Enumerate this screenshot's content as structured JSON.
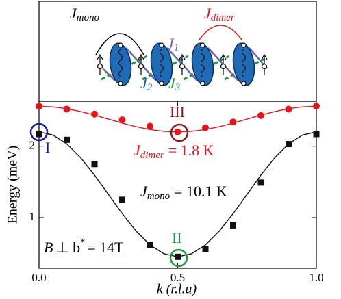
{
  "chart_data": {
    "type": "scatter",
    "x_label": "k (r.l.u)",
    "y_label": "Energy (meV)",
    "x": [
      0,
      0.1,
      0.2,
      0.3,
      0.4,
      0.5,
      0.6,
      0.7,
      0.8,
      0.9,
      1.0
    ],
    "series": [
      {
        "color": "#e8141c",
        "values": [
          2.56,
          2.52,
          2.45,
          2.37,
          2.28,
          2.2,
          2.26,
          2.34,
          2.43,
          2.52,
          2.56
        ]
      },
      {
        "color": "#111111",
        "values": [
          2.17,
          2.09,
          1.75,
          1.25,
          0.62,
          0.45,
          0.56,
          0.89,
          1.49,
          2.03,
          2.17
        ]
      }
    ],
    "fits": [
      {
        "color": "#e8141c",
        "x": [
          0,
          0.05,
          0.1,
          0.15,
          0.2,
          0.25,
          0.3,
          0.35,
          0.4,
          0.45,
          0.5,
          0.55,
          0.6,
          0.65,
          0.7,
          0.75,
          0.8,
          0.85,
          0.9,
          0.95,
          1.0
        ],
        "values": [
          2.56,
          2.551,
          2.526,
          2.486,
          2.436,
          2.38,
          2.324,
          2.274,
          2.234,
          2.209,
          2.2,
          2.209,
          2.234,
          2.274,
          2.324,
          2.38,
          2.436,
          2.486,
          2.526,
          2.551,
          2.56
        ]
      },
      {
        "color": "#111111",
        "x": [
          0,
          0.05,
          0.1,
          0.15,
          0.2,
          0.25,
          0.3,
          0.35,
          0.4,
          0.45,
          0.5,
          0.55,
          0.6,
          0.65,
          0.7,
          0.75,
          0.8,
          0.85,
          0.9,
          0.95,
          1.0
        ],
        "values": [
          2.2,
          2.157,
          2.033,
          1.839,
          1.595,
          1.325,
          1.055,
          0.811,
          0.617,
          0.493,
          0.45,
          0.493,
          0.617,
          0.811,
          1.055,
          1.325,
          1.595,
          1.839,
          2.033,
          2.157,
          2.2
        ]
      }
    ],
    "xlim": [
      0,
      1
    ],
    "ylim": [
      0.29,
      2.63
    ],
    "xticks": [
      {
        "value": 0,
        "label": "0.0"
      },
      {
        "value": 0.5,
        "label": "0.5"
      },
      {
        "value": 1,
        "label": "1.0"
      }
    ],
    "yticks": [
      1,
      2
    ],
    "annotations": [
      {
        "text": "III"
      },
      {
        "text": "I"
      },
      {
        "text": "II"
      },
      {
        "symbol": "J",
        "subscript": "dimer",
        "text": "= 1.8 K"
      },
      {
        "symbol": "J",
        "subscript": "mono",
        "text": "= 10.1 K"
      },
      {
        "symbol": "B",
        "text": "⊥ b",
        "superscript": "*",
        "tail": "= 14T"
      }
    ]
  },
  "inset": {
    "labels": [
      {
        "symbol": "J",
        "subscript": "mono"
      },
      {
        "symbol": "J",
        "subscript": "dimer"
      },
      {
        "symbol": "J",
        "subscript": "1"
      },
      {
        "symbol": "J",
        "subscript": "2"
      },
      {
        "symbol": "J",
        "subscript": "3"
      }
    ]
  }
}
